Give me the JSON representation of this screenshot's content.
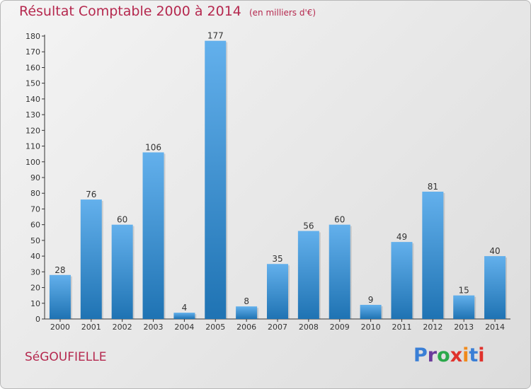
{
  "header": {
    "title": "Résultat Comptable 2000 à 2014",
    "unit": "(en milliers d'€)"
  },
  "commune": "SéGOUFIELLE",
  "logo": {
    "text": "Proxiti",
    "letters": [
      "P",
      "r",
      "o",
      "x",
      "i",
      "t",
      "i"
    ]
  },
  "colors": {
    "bar_light": "#63b0ec",
    "bar_dark": "#1f73b3",
    "title": "#b5284e",
    "axis": "#333333"
  },
  "chart_data": {
    "type": "bar",
    "categories": [
      "2000",
      "2001",
      "2002",
      "2003",
      "2004",
      "2005",
      "2006",
      "2007",
      "2008",
      "2009",
      "2010",
      "2011",
      "2012",
      "2013",
      "2014"
    ],
    "values": [
      28,
      76,
      60,
      106,
      4,
      177,
      8,
      35,
      56,
      60,
      9,
      49,
      81,
      15,
      40
    ],
    "title": "Résultat Comptable 2000 à 2014",
    "xlabel": "",
    "ylabel": "",
    "ylim": [
      0,
      180
    ],
    "yticks": [
      0,
      10,
      20,
      30,
      40,
      50,
      60,
      70,
      80,
      90,
      100,
      110,
      120,
      130,
      140,
      150,
      160,
      170,
      180
    ],
    "grid": false,
    "legend": "none"
  }
}
